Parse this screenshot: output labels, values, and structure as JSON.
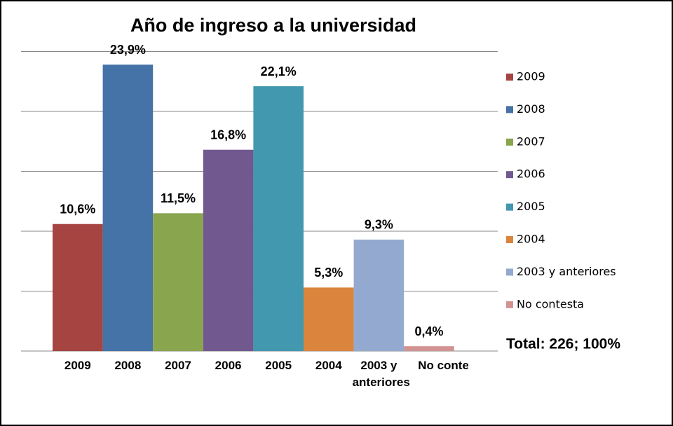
{
  "chart_data": {
    "type": "bar",
    "title": "Año de ingreso a la universidad",
    "categories": [
      "2009",
      "2008",
      "2007",
      "2006",
      "2005",
      "2004",
      "2003 y anteriores",
      "No contesta"
    ],
    "values": [
      10.6,
      23.9,
      11.5,
      16.8,
      22.1,
      5.3,
      9.3,
      0.4
    ],
    "value_labels": [
      "10,6%",
      "23,9%",
      "11,5%",
      "16,8%",
      "22,1%",
      "5,3%",
      "9,3%",
      "0,4%"
    ],
    "colors": [
      "#a64442",
      "#4572a7",
      "#89a54e",
      "#71588f",
      "#4198af",
      "#db843d",
      "#93a9cf",
      "#d19392"
    ],
    "ylim": [
      0,
      25
    ],
    "yticks": [
      0,
      5,
      10,
      15,
      20,
      25
    ],
    "grid": true,
    "legend": "right",
    "annotation": "Total: 226; 100%"
  }
}
